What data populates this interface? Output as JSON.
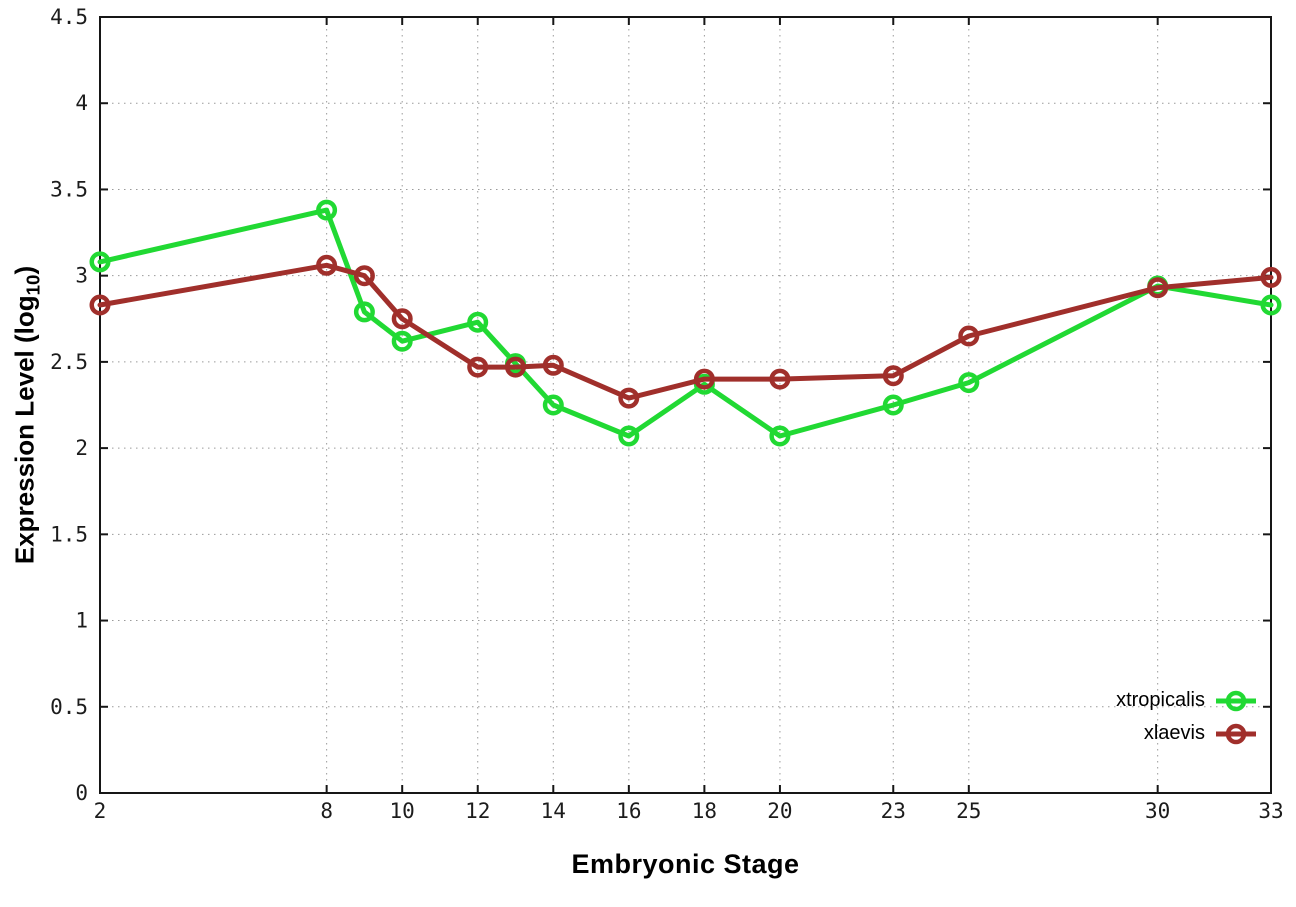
{
  "chart_data": {
    "type": "line",
    "title": "",
    "xlabel": "Embryonic Stage",
    "ylabel": "Expression Level (log10)",
    "ylabel_parts": {
      "main": "Expression Level (log",
      "sub": "10",
      "close": ")"
    },
    "xlim": [
      2,
      33
    ],
    "ylim": [
      0,
      4.5
    ],
    "x_ticks": [
      2,
      8,
      10,
      12,
      14,
      16,
      18,
      20,
      23,
      25,
      30,
      33
    ],
    "y_ticks": [
      0,
      0.5,
      1,
      1.5,
      2,
      2.5,
      3,
      3.5,
      4,
      4.5
    ],
    "grid": true,
    "grid_style": "dotted",
    "legend_position": "bottom-right",
    "marker": "open-circle",
    "axis_color": "#161616",
    "grid_color": "#9a9a9a",
    "tick_label_color": "#1c1c1c",
    "series": [
      {
        "name": "xtropicalis",
        "color": "#21d933",
        "x": [
          2,
          8,
          9,
          10,
          12,
          13,
          14,
          16,
          18,
          20,
          23,
          25,
          30,
          33
        ],
        "y": [
          3.08,
          3.38,
          2.79,
          2.62,
          2.73,
          2.49,
          2.25,
          2.07,
          2.37,
          2.07,
          2.25,
          2.38,
          2.94,
          2.83
        ]
      },
      {
        "name": "xlaevis",
        "color": "#a02f2b",
        "x": [
          2,
          8,
          9,
          10,
          12,
          13,
          14,
          16,
          18,
          20,
          23,
          25,
          30,
          33
        ],
        "y": [
          2.83,
          3.06,
          3.0,
          2.75,
          2.47,
          2.47,
          2.48,
          2.29,
          2.4,
          2.4,
          2.42,
          2.65,
          2.93,
          2.99
        ]
      }
    ]
  }
}
